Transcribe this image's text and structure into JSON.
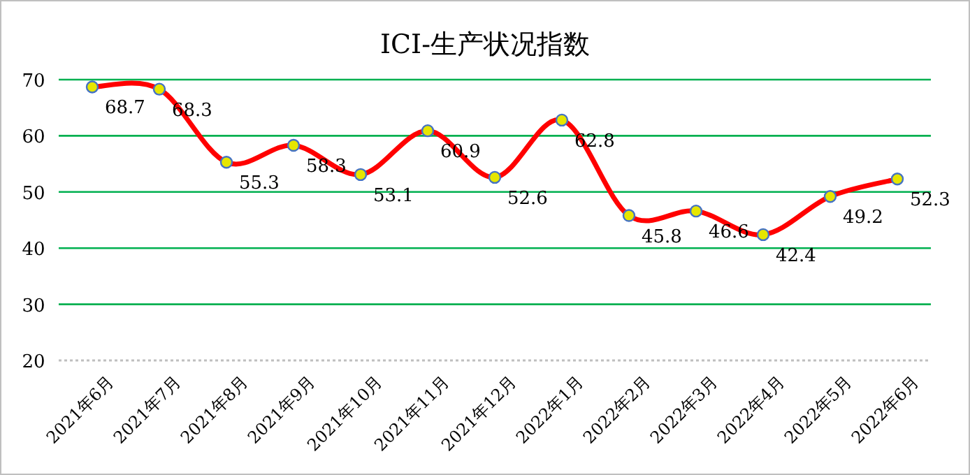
{
  "chart_data": {
    "type": "line",
    "title": "ICI-生产状况指数",
    "categories": [
      "2021年6月",
      "2021年7月",
      "2021年8月",
      "2021年9月",
      "2021年10月",
      "2021年11月",
      "2021年12月",
      "2022年1月",
      "2022年2月",
      "2022年3月",
      "2022年4月",
      "2022年5月",
      "2022年6月"
    ],
    "values": [
      68.7,
      68.3,
      55.3,
      58.3,
      53.1,
      60.9,
      52.6,
      62.8,
      45.8,
      46.6,
      42.4,
      49.2,
      52.3
    ],
    "color": "#ff0000",
    "ylim": [
      20,
      70
    ],
    "yticks": [
      20,
      30,
      40,
      50,
      60,
      70
    ],
    "grid": "y",
    "marker": "circle",
    "line_style": "solid",
    "data_labels": true
  }
}
